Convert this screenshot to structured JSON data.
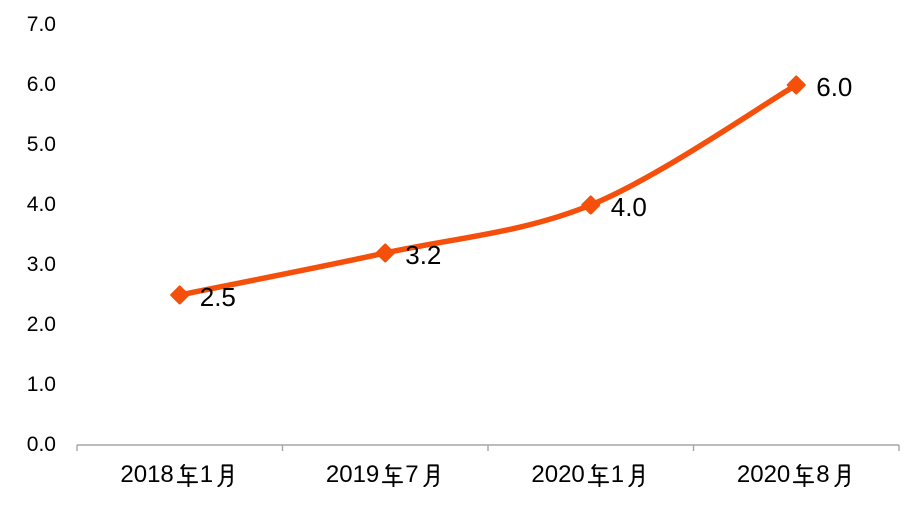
{
  "chart_data": {
    "type": "line",
    "title": "",
    "categories": [
      "2018年1月",
      "2019年7月",
      "2020年1月",
      "2020年8月"
    ],
    "values": [
      2.5,
      3.2,
      4.0,
      6.0
    ],
    "data_labels": [
      "2.5",
      "3.2",
      "4.0",
      "6.0"
    ],
    "ytick_labels": [
      "0.0",
      "1.0",
      "2.0",
      "3.0",
      "4.0",
      "5.0",
      "6.0",
      "7.0"
    ],
    "ylim": [
      0,
      7
    ],
    "ytick_step": 1.0,
    "xlabel": "",
    "ylabel": "",
    "grid": false,
    "legend": "none",
    "smoothed": true,
    "marker": "diamond",
    "colors": {
      "series": "#F4500C",
      "axis": "#A6A6A6",
      "text": "#000000",
      "background": "#FFFFFF"
    }
  }
}
